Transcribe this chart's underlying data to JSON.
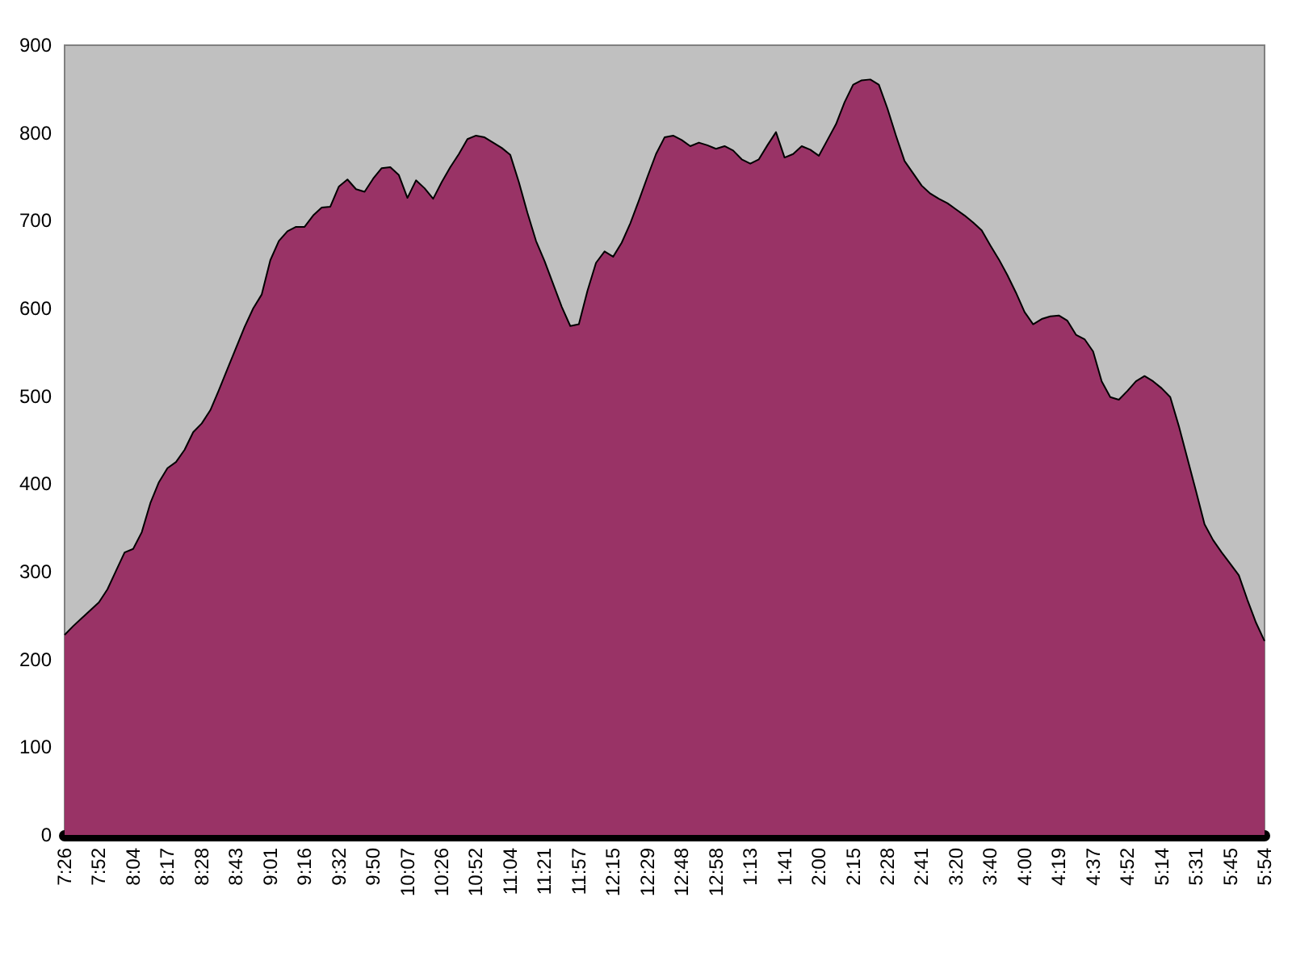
{
  "chart_data": {
    "type": "area",
    "categories": [
      "7:26",
      null,
      null,
      null,
      "7:52",
      null,
      null,
      null,
      "8:04",
      null,
      null,
      null,
      "8:17",
      null,
      null,
      null,
      "8:28",
      null,
      null,
      null,
      "8:43",
      null,
      null,
      null,
      "9:01",
      null,
      null,
      null,
      "9:16",
      null,
      null,
      null,
      "9:32",
      null,
      null,
      null,
      "9:50",
      null,
      null,
      null,
      "10:07",
      null,
      null,
      null,
      "10:26",
      null,
      null,
      null,
      "10:52",
      null,
      null,
      null,
      "11:04",
      null,
      null,
      null,
      "11:21",
      null,
      null,
      null,
      "11:57",
      null,
      null,
      null,
      "12:15",
      null,
      null,
      null,
      "12:29",
      null,
      null,
      null,
      "12:48",
      null,
      null,
      null,
      "12:58",
      null,
      null,
      null,
      "1:13",
      null,
      null,
      null,
      "1:41",
      null,
      null,
      null,
      "2:00",
      null,
      null,
      null,
      "2:15",
      null,
      null,
      null,
      "2:28",
      null,
      null,
      null,
      "2:41",
      null,
      null,
      null,
      "3:20",
      null,
      null,
      null,
      "3:40",
      null,
      null,
      null,
      "4:00",
      null,
      null,
      null,
      "4:19",
      null,
      null,
      null,
      "4:37",
      null,
      null,
      null,
      "4:52",
      null,
      null,
      null,
      "5:14",
      null,
      null,
      null,
      "5:31",
      null,
      null,
      null,
      "5:45",
      null,
      null,
      null,
      "5:54"
    ],
    "series": [
      {
        "color": "#993366",
        "values": [
          228,
          238,
          247,
          256,
          265,
          280,
          301,
          322,
          326,
          345,
          378,
          402,
          418,
          425,
          439,
          459,
          469,
          484,
          507,
          531,
          555,
          579,
          600,
          616,
          655,
          677,
          688,
          693,
          693,
          706,
          715,
          716,
          739,
          747,
          736,
          733,
          748,
          760,
          761,
          752,
          726,
          746,
          737,
          725,
          744,
          761,
          776,
          793,
          797,
          795,
          789,
          783,
          775,
          744,
          709,
          677,
          654,
          628,
          602,
          580,
          582,
          620,
          652,
          665,
          659,
          675,
          697,
          723,
          750,
          776,
          795,
          797,
          792,
          785,
          789,
          786,
          782,
          785,
          780,
          770,
          765,
          770,
          786,
          801,
          772,
          776,
          785,
          781,
          774,
          792,
          810,
          835,
          855,
          860,
          861,
          855,
          828,
          797,
          768,
          754,
          740,
          731,
          725,
          720,
          713,
          706,
          698,
          689,
          672,
          656,
          638,
          618,
          596,
          582,
          588,
          591,
          592,
          586,
          570,
          565,
          551,
          517,
          499,
          496,
          506,
          517,
          523,
          517,
          509,
          499,
          466,
          429,
          392,
          354,
          336,
          322,
          309,
          296,
          268,
          242,
          221
        ]
      }
    ],
    "ylim": [
      0,
      900
    ],
    "yticks": [
      0,
      100,
      200,
      300,
      400,
      500,
      600,
      700,
      800,
      900
    ],
    "grid": false
  }
}
